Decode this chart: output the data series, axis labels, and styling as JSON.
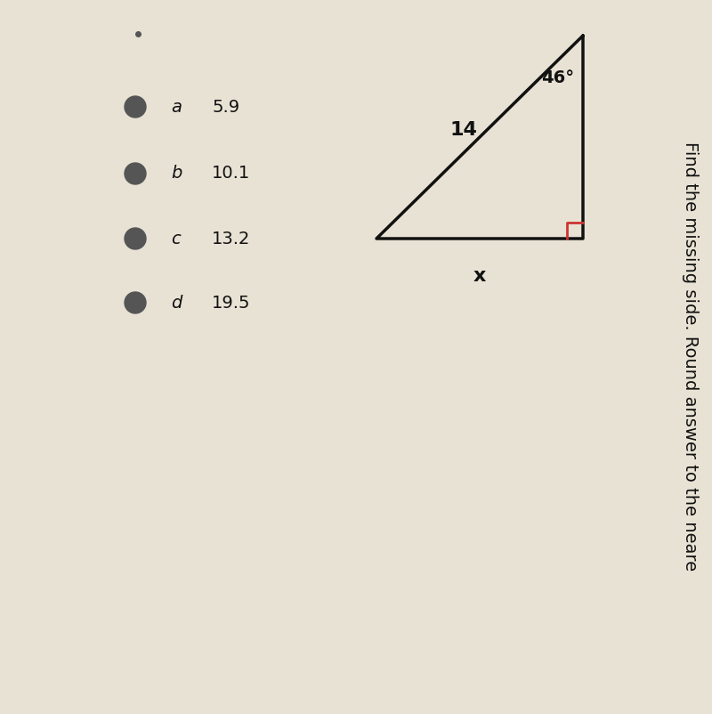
{
  "title": "Find the missing side. Round answer to the neare",
  "title_fontsize": 14,
  "angle_label": "46°",
  "side_label_hyp": "14",
  "side_label_x": "x",
  "options": [
    {
      "letter": "a",
      "value": "5.9"
    },
    {
      "letter": "b",
      "value": "10.1"
    },
    {
      "letter": "c",
      "value": "13.2"
    },
    {
      "letter": "d",
      "value": "19.5"
    }
  ],
  "bg_color": "#e8e2d4",
  "text_color": "#111111",
  "option_circle_color": "#555555",
  "line_color": "#111111",
  "right_angle_color": "#cc3333",
  "note_dot_color": "#555555",
  "triangle": {
    "A": [
      0.62,
      0.88
    ],
    "B": [
      0.62,
      0.55
    ],
    "C": [
      0.88,
      0.55
    ]
  }
}
